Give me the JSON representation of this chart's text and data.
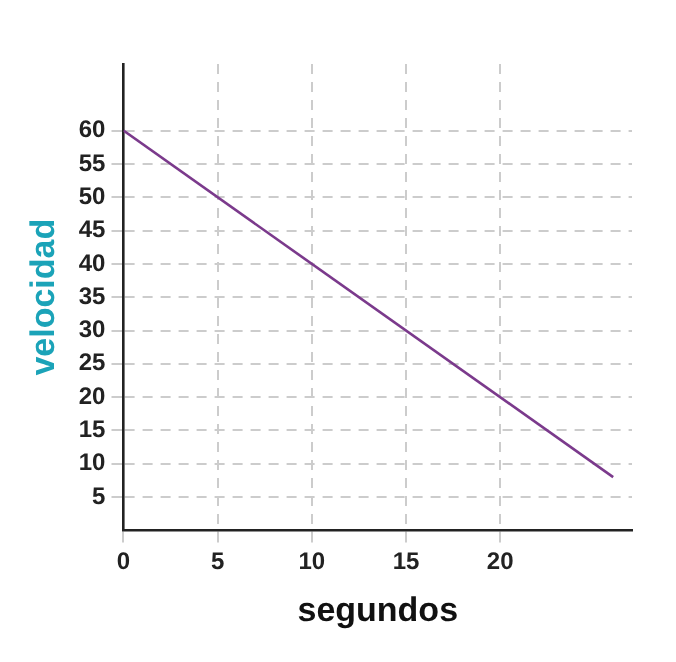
{
  "chart_data": {
    "type": "line",
    "xlabel": "segundos",
    "ylabel": "velocidad",
    "x": [
      0,
      26
    ],
    "series": [
      {
        "color": "#7b3a8c",
        "values": [
          60,
          8
        ]
      }
    ],
    "xlim": [
      0,
      27
    ],
    "ylim": [
      0,
      70
    ],
    "xticks": [
      0,
      5,
      10,
      15,
      20
    ],
    "yticks": [
      5,
      10,
      15,
      20,
      25,
      30,
      35,
      40,
      45,
      50,
      55,
      60
    ],
    "grid": true,
    "legend": false,
    "marker": "none",
    "line_style": "solid"
  }
}
